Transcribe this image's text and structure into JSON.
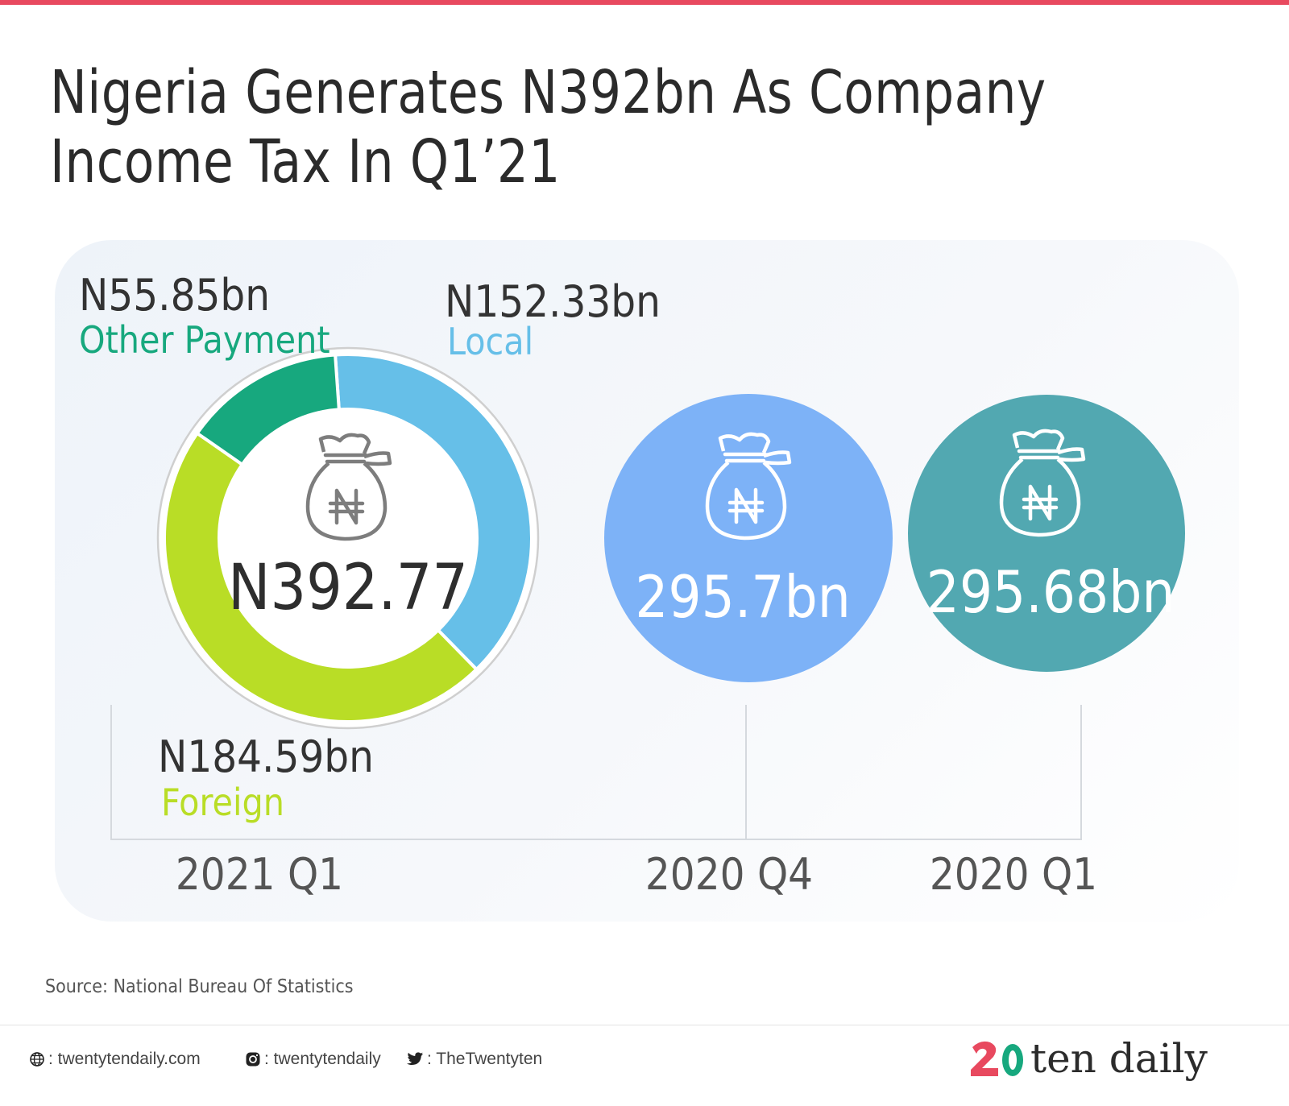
{
  "title": "Nigeria Generates N392bn As Company Income Tax In Q1’21",
  "source": "Source: National Bureau Of Statistics",
  "footer": {
    "website": ": twentytendaily.com",
    "instagram": ": twentytendaily",
    "twitter": ": TheTwentyten",
    "logo_text": "ten daily"
  },
  "colors": {
    "accent_bar": "#e8495f",
    "foreign": "#b9dd26",
    "local": "#66bfe8",
    "other": "#17a87e",
    "q4_bubble": "#7db2f7",
    "q1_2020_bubble": "#52a8b1"
  },
  "chart_data": {
    "type": "pie",
    "categories": [
      "2021 Q1",
      "2020 Q4",
      "2020 Q1"
    ],
    "q1_2021": {
      "total_label": "N392.77",
      "total": 392.77,
      "segments": [
        {
          "name": "Local",
          "value": 152.33,
          "label": "N152.33bn",
          "color": "#66bfe8"
        },
        {
          "name": "Foreign",
          "value": 184.59,
          "label": "N184.59bn",
          "color": "#b9dd26"
        },
        {
          "name": "Other Payment",
          "value": 55.85,
          "label": "N55.85bn",
          "color": "#17a87e"
        }
      ]
    },
    "bubbles": [
      {
        "period": "2020 Q4",
        "value": 295.7,
        "label": "295.7bn",
        "color": "#7db2f7"
      },
      {
        "period": "2020 Q1",
        "value": 295.68,
        "label": "295.68bn",
        "color": "#52a8b1"
      }
    ],
    "icons": [
      "money-bag-icon"
    ]
  }
}
